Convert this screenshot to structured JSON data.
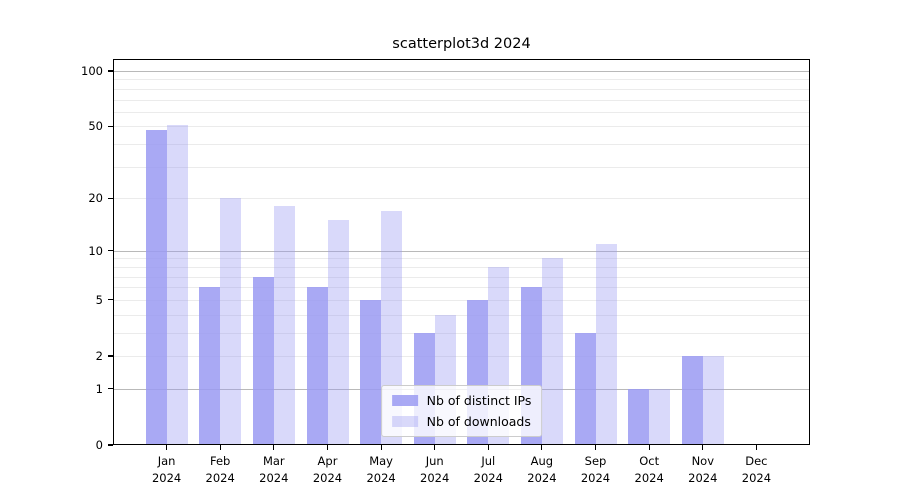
{
  "title": "scatterplot3d 2024",
  "chart_data": {
    "type": "bar",
    "title": "scatterplot3d 2024",
    "xlabel": "",
    "ylabel": "",
    "categories": [
      "Jan 2024",
      "Feb 2024",
      "Mar 2024",
      "Apr 2024",
      "May 2024",
      "Jun 2024",
      "Jul 2024",
      "Aug 2024",
      "Sep 2024",
      "Oct 2024",
      "Nov 2024",
      "Dec 2024"
    ],
    "x_tick_month": [
      "Jan",
      "Feb",
      "Mar",
      "Apr",
      "May",
      "Jun",
      "Jul",
      "Aug",
      "Sep",
      "Oct",
      "Nov",
      "Dec"
    ],
    "x_tick_year": "2024",
    "series": [
      {
        "name": "Nb of distinct IPs",
        "values": [
          48,
          6,
          7,
          6,
          5,
          3,
          5,
          6,
          3,
          1,
          2,
          0
        ],
        "alpha": 0.85
      },
      {
        "name": "Nb of downloads",
        "values": [
          51,
          20,
          18,
          15,
          17,
          4,
          8,
          9,
          11,
          1,
          2,
          0
        ],
        "alpha": 0.38
      }
    ],
    "bar_base_color": "#9a9af2",
    "y_scale": "log1p",
    "y_ticks": [
      0,
      1,
      2,
      5,
      10,
      20,
      50,
      100
    ],
    "grid_major_values": [
      1,
      10,
      100
    ],
    "grid_minor_values": [
      2,
      3,
      4,
      5,
      6,
      7,
      8,
      9,
      20,
      30,
      40,
      50,
      60,
      70,
      80,
      90
    ],
    "grid": true,
    "ylim": [
      0,
      117
    ],
    "legend_position": "lower center"
  },
  "colors": {
    "bar_dark_effective": "#a9a9f4",
    "bar_light_effective": "#d8d8f8",
    "grid_major": "#b9b9b9",
    "grid_minor": "#ebebeb",
    "spine": "#000000",
    "legend_border": "#cccccc",
    "background": "#ffffff"
  }
}
